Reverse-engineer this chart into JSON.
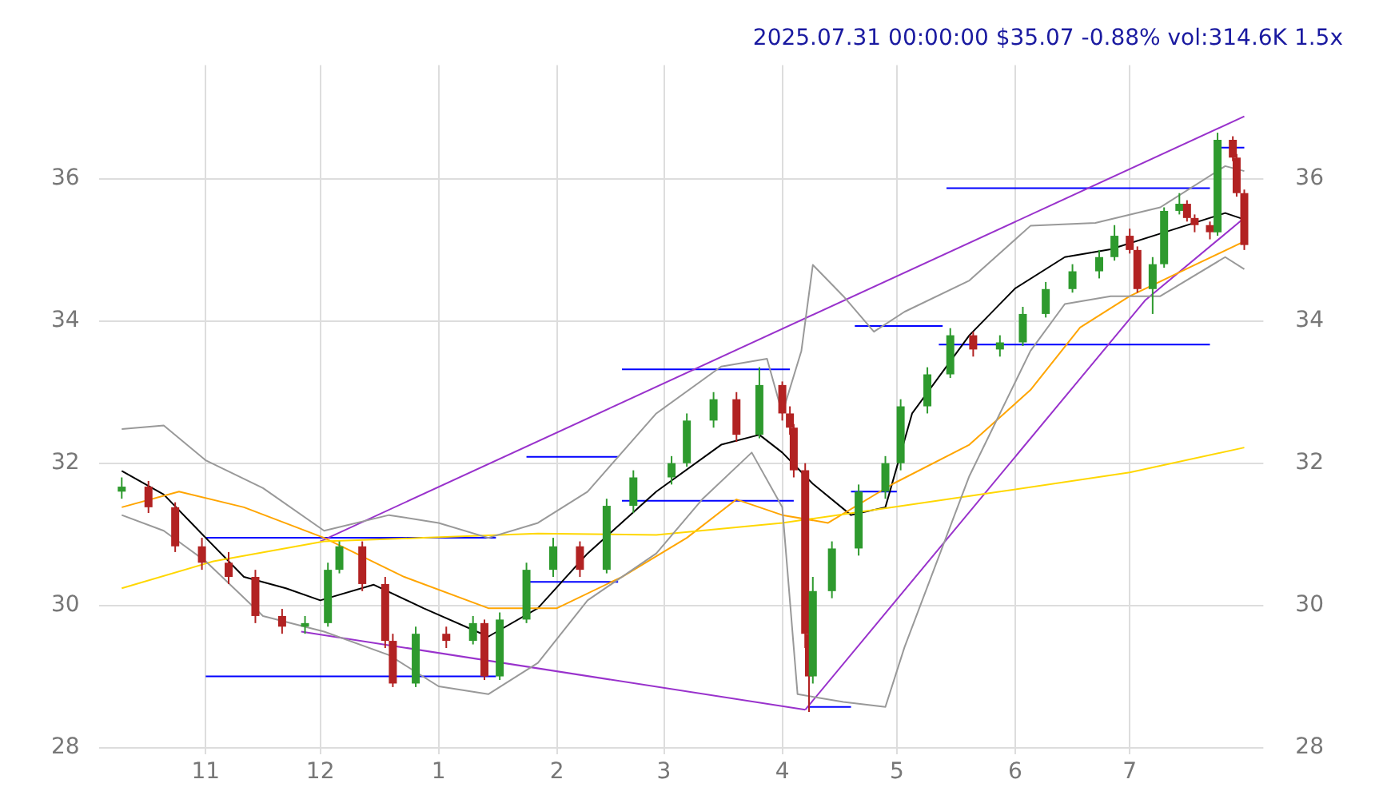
{
  "chart_data": {
    "type": "candlestick",
    "title": "2025.07.31 00:00:00 $35.07 -0.88% vol:314.6K 1.5x",
    "x": [
      "2024-10-10",
      "2024-10-17",
      "2024-10-24",
      "2024-10-31",
      "2024-11-07",
      "2024-11-14",
      "2024-11-21",
      "2024-11-27",
      "2024-12-03",
      "2024-12-06",
      "2024-12-12",
      "2024-12-18",
      "2024-12-20",
      "2024-12-26",
      "2025-01-03",
      "2025-01-10",
      "2025-01-13",
      "2025-01-17",
      "2025-01-24",
      "2025-01-31",
      "2025-02-07",
      "2025-02-14",
      "2025-02-21",
      "2025-03-03",
      "2025-03-07",
      "2025-03-14",
      "2025-03-20",
      "2025-03-26",
      "2025-04-01",
      "2025-04-03",
      "2025-04-04",
      "2025-04-07",
      "2025-04-08",
      "2025-04-09",
      "2025-04-14",
      "2025-04-21",
      "2025-04-28",
      "2025-05-02",
      "2025-05-09",
      "2025-05-15",
      "2025-05-21",
      "2025-05-28",
      "2025-06-03",
      "2025-06-09",
      "2025-06-16",
      "2025-06-23",
      "2025-06-27",
      "2025-07-01",
      "2025-07-03",
      "2025-07-07",
      "2025-07-10",
      "2025-07-14",
      "2025-07-16",
      "2025-07-18",
      "2025-07-22",
      "2025-07-24",
      "2025-07-28",
      "2025-07-29",
      "2025-07-31"
    ],
    "ohlc": [
      [
        31.6,
        31.8,
        31.5,
        31.67
      ],
      [
        31.67,
        31.75,
        31.3,
        31.38
      ],
      [
        31.38,
        31.45,
        30.75,
        30.83
      ],
      [
        30.83,
        30.95,
        30.5,
        30.6
      ],
      [
        30.6,
        30.75,
        30.3,
        30.4
      ],
      [
        30.4,
        30.5,
        29.75,
        29.85
      ],
      [
        29.85,
        29.95,
        29.6,
        29.7
      ],
      [
        29.7,
        29.85,
        29.6,
        29.75
      ],
      [
        29.75,
        30.6,
        29.7,
        30.5
      ],
      [
        30.5,
        30.9,
        30.45,
        30.83
      ],
      [
        30.83,
        30.9,
        30.2,
        30.3
      ],
      [
        30.3,
        30.4,
        29.4,
        29.5
      ],
      [
        29.5,
        29.6,
        28.85,
        28.9
      ],
      [
        28.9,
        29.7,
        28.85,
        29.6
      ],
      [
        29.6,
        29.7,
        29.4,
        29.5
      ],
      [
        29.5,
        29.85,
        29.45,
        29.75
      ],
      [
        29.75,
        29.8,
        28.95,
        29.0
      ],
      [
        29.0,
        29.9,
        28.95,
        29.8
      ],
      [
        29.8,
        30.6,
        29.75,
        30.5
      ],
      [
        30.5,
        30.95,
        30.4,
        30.83
      ],
      [
        30.83,
        30.9,
        30.4,
        30.5
      ],
      [
        30.5,
        31.5,
        30.45,
        31.4
      ],
      [
        31.4,
        31.9,
        31.3,
        31.8
      ],
      [
        31.8,
        32.1,
        31.7,
        32.0
      ],
      [
        32.0,
        32.7,
        31.95,
        32.6
      ],
      [
        32.6,
        33.0,
        32.5,
        32.9
      ],
      [
        32.9,
        33.0,
        32.3,
        32.4
      ],
      [
        32.4,
        33.35,
        32.35,
        33.1
      ],
      [
        33.1,
        33.15,
        32.6,
        32.7
      ],
      [
        32.7,
        32.8,
        32.4,
        32.5
      ],
      [
        32.5,
        32.55,
        31.8,
        31.9
      ],
      [
        31.9,
        32.0,
        29.4,
        29.6
      ],
      [
        29.6,
        29.7,
        28.5,
        29.0
      ],
      [
        29.0,
        30.4,
        28.9,
        30.2
      ],
      [
        30.2,
        30.9,
        30.1,
        30.8
      ],
      [
        30.8,
        31.7,
        30.7,
        31.6
      ],
      [
        31.6,
        32.1,
        31.5,
        32.0
      ],
      [
        32.0,
        32.9,
        31.9,
        32.8
      ],
      [
        32.8,
        33.35,
        32.7,
        33.25
      ],
      [
        33.25,
        33.9,
        33.2,
        33.8
      ],
      [
        33.8,
        33.85,
        33.5,
        33.6
      ],
      [
        33.6,
        33.8,
        33.5,
        33.7
      ],
      [
        33.7,
        34.2,
        33.65,
        34.1
      ],
      [
        34.1,
        34.55,
        34.05,
        34.45
      ],
      [
        34.45,
        34.8,
        34.4,
        34.7
      ],
      [
        34.7,
        35.0,
        34.6,
        34.9
      ],
      [
        34.9,
        35.35,
        34.85,
        35.2
      ],
      [
        35.2,
        35.3,
        34.95,
        35.0
      ],
      [
        35.0,
        35.05,
        34.4,
        34.45
      ],
      [
        34.45,
        34.9,
        34.1,
        34.8
      ],
      [
        34.8,
        35.6,
        34.75,
        35.55
      ],
      [
        35.55,
        35.8,
        35.5,
        35.65
      ],
      [
        35.65,
        35.7,
        35.4,
        35.45
      ],
      [
        35.45,
        35.5,
        35.25,
        35.35
      ],
      [
        35.35,
        35.4,
        35.15,
        35.25
      ],
      [
        35.25,
        36.65,
        35.2,
        36.55
      ],
      [
        36.55,
        36.6,
        36.25,
        36.3
      ],
      [
        36.3,
        36.35,
        35.75,
        35.8
      ],
      [
        35.8,
        35.85,
        35.0,
        35.07
      ]
    ],
    "colors": [
      "#2e9a2e",
      "#b22222",
      "#b22222",
      "#b22222",
      "#b22222",
      "#b22222",
      "#b22222",
      "#2e9a2e",
      "#2e9a2e",
      "#2e9a2e",
      "#b22222",
      "#b22222",
      "#b22222",
      "#2e9a2e",
      "#b22222",
      "#2e9a2e",
      "#b22222",
      "#2e9a2e",
      "#2e9a2e",
      "#2e9a2e",
      "#b22222",
      "#2e9a2e",
      "#2e9a2e",
      "#2e9a2e",
      "#2e9a2e",
      "#2e9a2e",
      "#b22222",
      "#2e9a2e",
      "#b22222",
      "#b22222",
      "#b22222",
      "#b22222",
      "#b22222",
      "#2e9a2e",
      "#2e9a2e",
      "#2e9a2e",
      "#2e9a2e",
      "#2e9a2e",
      "#2e9a2e",
      "#2e9a2e",
      "#b22222",
      "#2e9a2e",
      "#2e9a2e",
      "#2e9a2e",
      "#2e9a2e",
      "#2e9a2e",
      "#2e9a2e",
      "#b22222",
      "#b22222",
      "#2e9a2e",
      "#2e9a2e",
      "#2e9a2e",
      "#b22222",
      "#b22222",
      "#b22222",
      "#2e9a2e",
      "#b22222",
      "#b22222",
      "#b22222"
    ],
    "series": [
      {
        "type": "line",
        "color": "#999999",
        "x": [
          "2024-10-10",
          "2024-10-21",
          "2024-11-01",
          "2024-11-16",
          "2024-12-02",
          "2024-12-19",
          "2025-01-01",
          "2025-01-14",
          "2025-01-27",
          "2025-02-09",
          "2025-02-27",
          "2025-03-16",
          "2025-03-28",
          "2025-04-01",
          "2025-04-06",
          "2025-04-09",
          "2025-04-17",
          "2025-04-25",
          "2025-05-03",
          "2025-05-20",
          "2025-06-05",
          "2025-06-22",
          "2025-07-09",
          "2025-07-26",
          "2025-07-31"
        ],
        "values": [
          32.48,
          32.53,
          32.04,
          31.65,
          31.05,
          31.27,
          31.16,
          30.95,
          31.16,
          31.6,
          32.7,
          33.36,
          33.47,
          32.7,
          33.58,
          34.79,
          34.35,
          33.85,
          34.13,
          34.57,
          35.34,
          35.38,
          35.6,
          36.18,
          36.11
        ]
      },
      {
        "type": "line",
        "color": "#999999",
        "x": [
          "2024-10-10",
          "2024-10-21",
          "2024-11-01",
          "2024-11-16",
          "2024-12-02",
          "2024-12-19",
          "2025-01-01",
          "2025-01-14",
          "2025-01-27",
          "2025-02-09",
          "2025-02-27",
          "2025-03-11",
          "2025-03-24",
          "2025-04-01",
          "2025-04-05",
          "2025-04-17",
          "2025-04-28",
          "2025-05-03",
          "2025-05-20",
          "2025-06-05",
          "2025-06-14",
          "2025-06-26",
          "2025-07-09",
          "2025-07-26",
          "2025-07-31"
        ],
        "values": [
          31.27,
          31.05,
          30.62,
          29.85,
          29.63,
          29.3,
          28.86,
          28.75,
          29.19,
          30.07,
          30.73,
          31.49,
          32.15,
          31.38,
          28.75,
          28.64,
          28.57,
          29.41,
          31.82,
          33.58,
          34.24,
          34.35,
          34.35,
          34.9,
          34.73
        ]
      },
      {
        "type": "line",
        "color": "#ffd700",
        "x": [
          "2024-10-10",
          "2024-11-03",
          "2024-12-02",
          "2024-12-28",
          "2025-01-27",
          "2025-02-27",
          "2025-04-01",
          "2025-04-30",
          "2025-05-28",
          "2025-07-01",
          "2025-07-31"
        ],
        "values": [
          30.24,
          30.62,
          30.9,
          30.95,
          31.01,
          30.99,
          31.16,
          31.38,
          31.6,
          31.87,
          32.22
        ]
      },
      {
        "type": "line",
        "color": "#ffa500",
        "x": [
          "2024-10-10",
          "2024-10-25",
          "2024-11-11",
          "2024-12-02",
          "2024-12-23",
          "2025-01-14",
          "2025-02-01",
          "2025-02-18",
          "2025-03-07",
          "2025-03-20",
          "2025-04-01",
          "2025-04-13",
          "2025-04-30",
          "2025-05-20",
          "2025-06-05",
          "2025-06-18",
          "2025-07-01",
          "2025-07-18",
          "2025-07-31"
        ],
        "values": [
          31.38,
          31.6,
          31.38,
          30.95,
          30.4,
          29.96,
          29.96,
          30.4,
          30.95,
          31.49,
          31.27,
          31.16,
          31.71,
          32.26,
          33.03,
          33.91,
          34.35,
          34.79,
          35.12
        ]
      },
      {
        "type": "line",
        "color": "#000000",
        "x": [
          "2024-10-10",
          "2024-10-21",
          "2024-11-01",
          "2024-11-11",
          "2024-11-22",
          "2024-12-01",
          "2024-12-15",
          "2024-12-28",
          "2025-01-14",
          "2025-01-27",
          "2025-02-09",
          "2025-02-27",
          "2025-03-16",
          "2025-03-26",
          "2025-04-01",
          "2025-04-09",
          "2025-04-19",
          "2025-04-28",
          "2025-05-05",
          "2025-05-20",
          "2025-06-01",
          "2025-06-14",
          "2025-06-26",
          "2025-07-09",
          "2025-07-26",
          "2025-07-31"
        ],
        "values": [
          31.89,
          31.56,
          30.95,
          30.4,
          30.24,
          30.07,
          30.29,
          29.96,
          29.56,
          29.96,
          30.73,
          31.6,
          32.26,
          32.4,
          32.15,
          31.71,
          31.27,
          31.38,
          32.7,
          33.8,
          34.46,
          34.9,
          35.01,
          35.23,
          35.52,
          35.43
        ]
      },
      {
        "type": "line",
        "color": "#9932cc",
        "x": [
          "2024-12-01",
          "2025-07-31"
        ],
        "values": [
          30.9,
          36.88
        ]
      },
      {
        "type": "line",
        "color": "#9932cc",
        "x": [
          "2024-11-26",
          "2025-04-07"
        ],
        "values": [
          29.63,
          28.53
        ]
      },
      {
        "type": "line",
        "color": "#9932cc",
        "x": [
          "2025-04-07",
          "2025-07-05",
          "2025-07-31"
        ],
        "values": [
          28.53,
          34.29,
          35.45
        ]
      },
      {
        "type": "line",
        "color": "#0000ff",
        "x": [
          "2024-11-01",
          "2025-01-16"
        ],
        "values": [
          30.95,
          30.95
        ]
      },
      {
        "type": "line",
        "color": "#0000ff",
        "x": [
          "2024-11-01",
          "2025-01-16"
        ],
        "values": [
          29.0,
          29.0
        ]
      },
      {
        "type": "line",
        "color": "#0000ff",
        "x": [
          "2025-01-24",
          "2025-02-17"
        ],
        "values": [
          32.09,
          32.09
        ]
      },
      {
        "type": "line",
        "color": "#0000ff",
        "x": [
          "2025-01-24",
          "2025-02-17"
        ],
        "values": [
          30.33,
          30.33
        ]
      },
      {
        "type": "line",
        "color": "#0000ff",
        "x": [
          "2025-02-18",
          "2025-04-03"
        ],
        "values": [
          33.32,
          33.32
        ]
      },
      {
        "type": "line",
        "color": "#0000ff",
        "x": [
          "2025-02-18",
          "2025-04-04"
        ],
        "values": [
          31.47,
          31.47
        ]
      },
      {
        "type": "line",
        "color": "#0000ff",
        "x": [
          "2025-04-08",
          "2025-04-19"
        ],
        "values": [
          28.57,
          28.57
        ]
      },
      {
        "type": "line",
        "color": "#0000ff",
        "x": [
          "2025-04-19",
          "2025-05-01"
        ],
        "values": [
          31.6,
          31.6
        ]
      },
      {
        "type": "line",
        "color": "#0000ff",
        "x": [
          "2025-04-20",
          "2025-05-13"
        ],
        "values": [
          33.93,
          33.93
        ]
      },
      {
        "type": "line",
        "color": "#0000ff",
        "x": [
          "2025-05-14",
          "2025-07-22"
        ],
        "values": [
          35.87,
          35.87
        ]
      },
      {
        "type": "line",
        "color": "#0000ff",
        "x": [
          "2025-05-12",
          "2025-07-22"
        ],
        "values": [
          33.67,
          33.67
        ]
      },
      {
        "type": "line",
        "color": "#0000ff",
        "x": [
          "2025-07-25",
          "2025-07-31"
        ],
        "values": [
          36.44,
          36.44
        ]
      }
    ],
    "xlim": [
      "2024-10-04",
      "2025-08-05"
    ],
    "xticks": [
      {
        "value": "2024-11-01",
        "label": "11"
      },
      {
        "value": "2024-12-01",
        "label": "12"
      },
      {
        "value": "2025-01-01",
        "label": "1"
      },
      {
        "value": "2025-02-01",
        "label": "2"
      },
      {
        "value": "2025-03-01",
        "label": "3"
      },
      {
        "value": "2025-04-01",
        "label": "4"
      },
      {
        "value": "2025-05-01",
        "label": "5"
      },
      {
        "value": "2025-06-01",
        "label": "6"
      },
      {
        "value": "2025-07-01",
        "label": "7"
      }
    ],
    "ylim": [
      27.9,
      37.6
    ],
    "yticks": [
      28,
      30,
      32,
      34,
      36
    ],
    "y2lim": [
      27.9,
      37.6
    ],
    "y2ticks": [
      28,
      30,
      32,
      34,
      36
    ],
    "grid": true
  }
}
